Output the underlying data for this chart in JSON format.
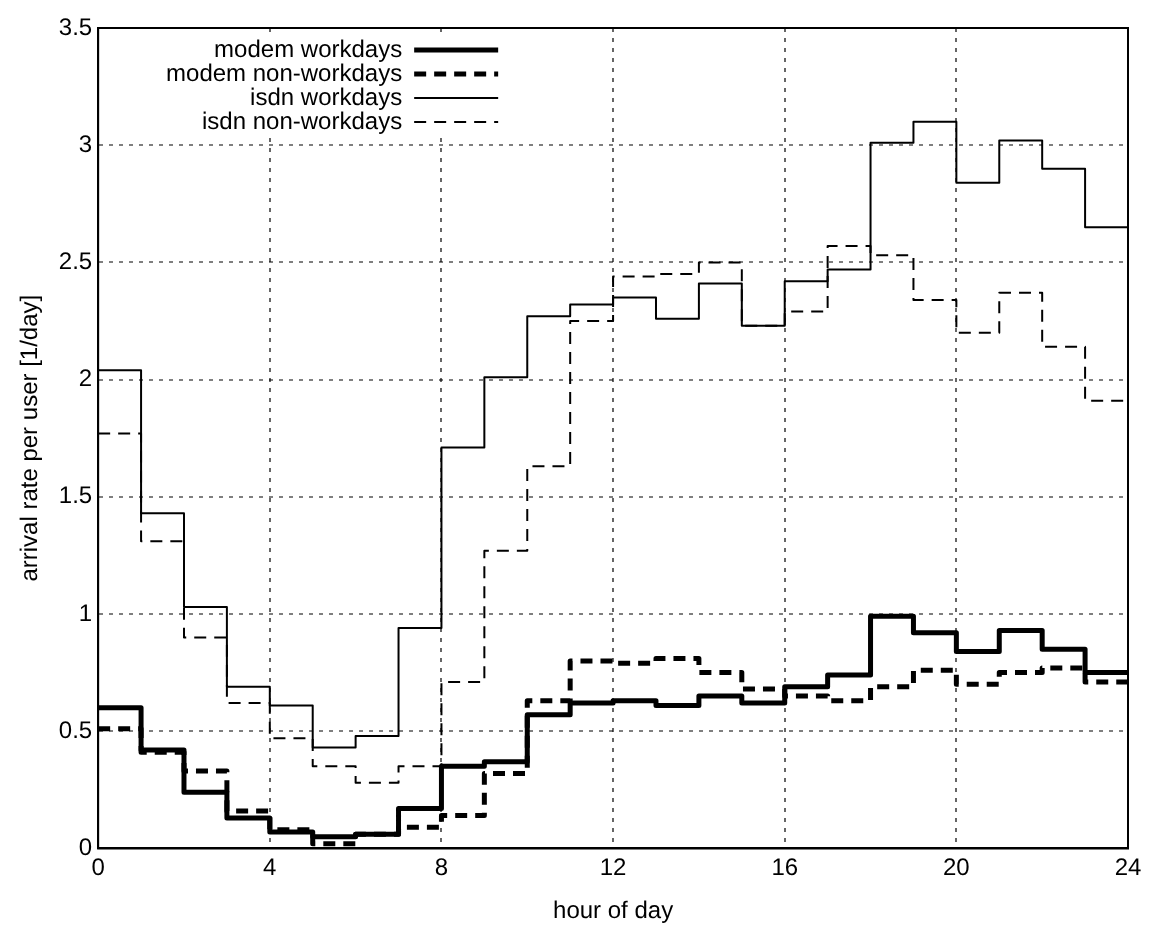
{
  "chart_data": {
    "type": "step",
    "xlabel": "hour of day",
    "ylabel": "arrival rate per user [1/day]",
    "x": [
      0,
      1,
      2,
      3,
      4,
      5,
      6,
      7,
      8,
      9,
      10,
      11,
      12,
      13,
      14,
      15,
      16,
      17,
      18,
      19,
      20,
      21,
      22,
      23,
      24
    ],
    "series": [
      {
        "name": "modem workdays",
        "color": "#000000",
        "line_style": "solid",
        "values": [
          0.6,
          0.42,
          0.24,
          0.13,
          0.07,
          0.05,
          0.06,
          0.17,
          0.35,
          0.37,
          0.57,
          0.62,
          0.63,
          0.61,
          0.65,
          0.62,
          0.69,
          0.74,
          0.99,
          0.92,
          0.84,
          0.93,
          0.85,
          0.75,
          0.75
        ]
      },
      {
        "name": "modem non-workdays",
        "color": "#000000",
        "line_style": "dashed",
        "values": [
          0.51,
          0.41,
          0.33,
          0.16,
          0.08,
          0.02,
          0.06,
          0.09,
          0.14,
          0.32,
          0.63,
          0.8,
          0.79,
          0.81,
          0.75,
          0.68,
          0.65,
          0.63,
          0.69,
          0.76,
          0.7,
          0.75,
          0.77,
          0.71,
          0.71
        ]
      },
      {
        "name": "isdn workdays",
        "color": "#000000",
        "line_style": "solid",
        "values": [
          2.04,
          1.43,
          1.03,
          0.69,
          0.61,
          0.43,
          0.48,
          0.94,
          1.71,
          2.01,
          2.27,
          2.32,
          2.35,
          2.26,
          2.41,
          2.23,
          2.42,
          2.47,
          3.01,
          3.1,
          2.84,
          3.02,
          2.9,
          2.65,
          2.65
        ]
      },
      {
        "name": "isdn non-workdays",
        "color": "#000000",
        "line_style": "dashed",
        "values": [
          1.77,
          1.31,
          0.9,
          0.62,
          0.47,
          0.35,
          0.28,
          0.35,
          0.71,
          1.27,
          1.63,
          2.25,
          2.44,
          2.45,
          2.5,
          2.23,
          2.29,
          2.57,
          2.53,
          2.34,
          2.2,
          2.37,
          2.14,
          1.91,
          1.91
        ]
      }
    ],
    "xlim": [
      0,
      24
    ],
    "xticks": [
      0,
      4,
      8,
      12,
      16,
      20,
      24
    ],
    "ylim": [
      0,
      3.5
    ],
    "yticks": [
      0,
      0.5,
      1,
      1.5,
      2,
      2.5,
      3,
      3.5
    ],
    "grid": true,
    "legend": "top left"
  }
}
